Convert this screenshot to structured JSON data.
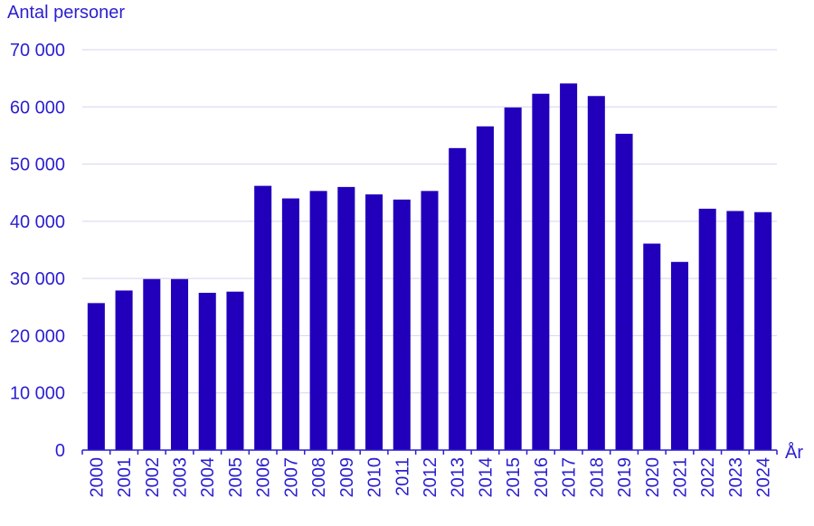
{
  "chart_data": {
    "type": "bar",
    "title": "",
    "ylabel": "Antal personer",
    "xlabel": "År",
    "ylim": [
      0,
      70000
    ],
    "yticks": [
      0,
      10000,
      20000,
      30000,
      40000,
      50000,
      60000,
      70000
    ],
    "ytick_labels": [
      "0",
      "10 000",
      "20 000",
      "30 000",
      "40 000",
      "50 000",
      "60 000",
      "70 000"
    ],
    "grid": true,
    "bar_color": "#2200bb",
    "text_color": "#2b1fd0",
    "categories": [
      "2000",
      "2001",
      "2002",
      "2003",
      "2004",
      "2005",
      "2006",
      "2007",
      "2008",
      "2009",
      "2010",
      "2011",
      "2012",
      "2013",
      "2014",
      "2015",
      "2016",
      "2017",
      "2018",
      "2019",
      "2020",
      "2021",
      "2022",
      "2023",
      "2024"
    ],
    "values": [
      25700,
      27900,
      29900,
      29900,
      27500,
      27700,
      46200,
      44000,
      45300,
      46000,
      44700,
      43800,
      45300,
      52800,
      56600,
      59900,
      62300,
      64100,
      61900,
      55300,
      36100,
      32900,
      42200,
      41800,
      41600
    ]
  }
}
